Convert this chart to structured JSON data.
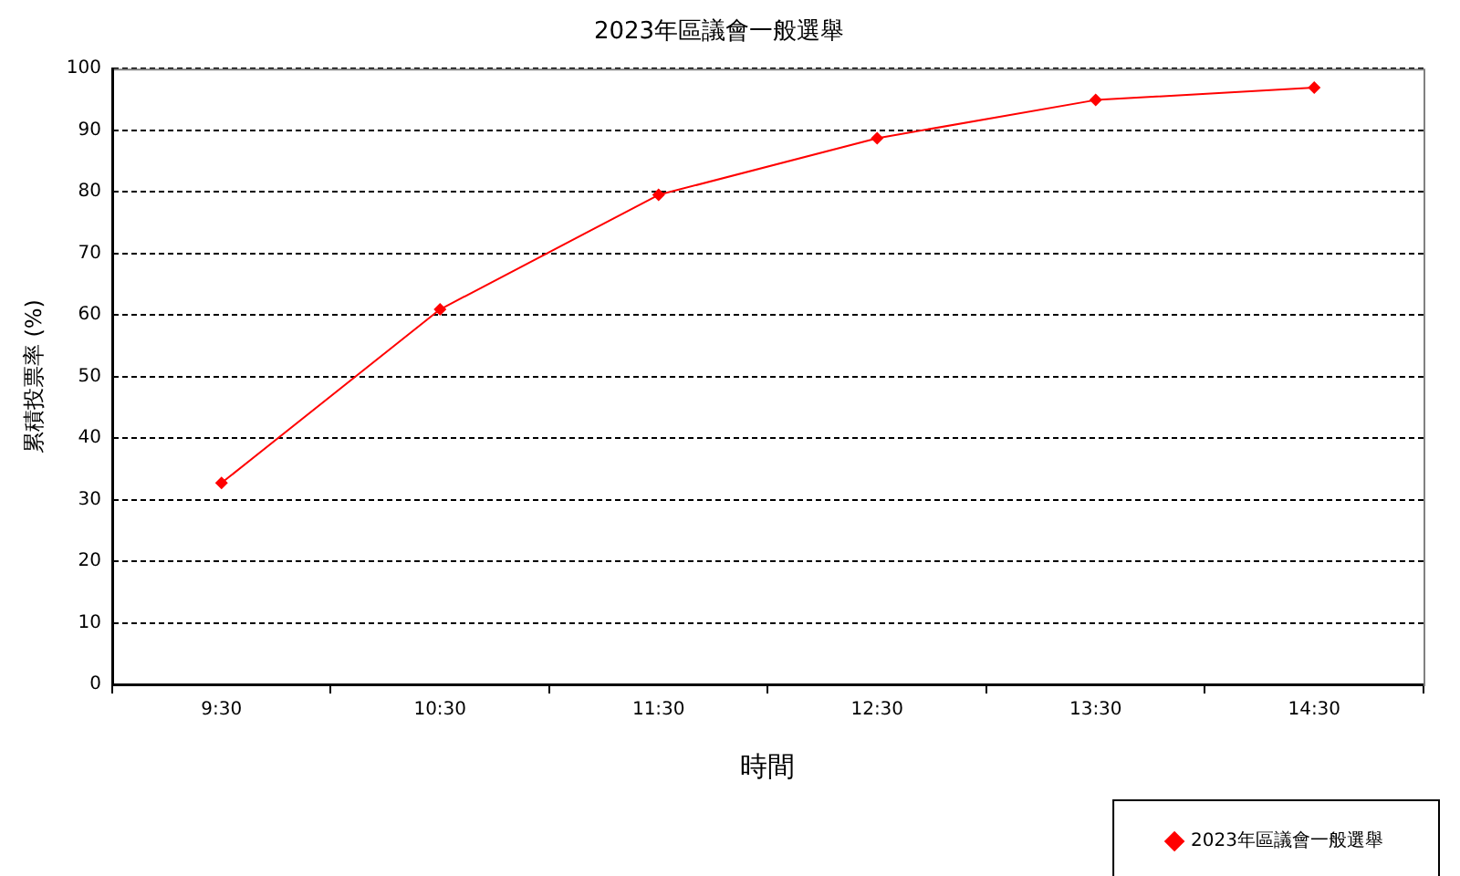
{
  "chart_data": {
    "type": "line",
    "title": "2023年區議會一般選舉",
    "xlabel": "時間",
    "ylabel": "累積投票率 (%)",
    "categories": [
      "9:30",
      "10:30",
      "11:30",
      "12:30",
      "13:30",
      "14:30"
    ],
    "series": [
      {
        "name": "2023年區議會一般選舉",
        "color": "#ff0000",
        "values": [
          32.7,
          60.9,
          79.5,
          88.7,
          94.9,
          96.9
        ]
      }
    ],
    "ylim": [
      0,
      100
    ],
    "yticks": [
      0,
      10,
      20,
      30,
      40,
      50,
      60,
      70,
      80,
      90,
      100
    ],
    "grid": "y",
    "legend": "bottom right",
    "marker": "diamond",
    "line_style": "solid"
  }
}
